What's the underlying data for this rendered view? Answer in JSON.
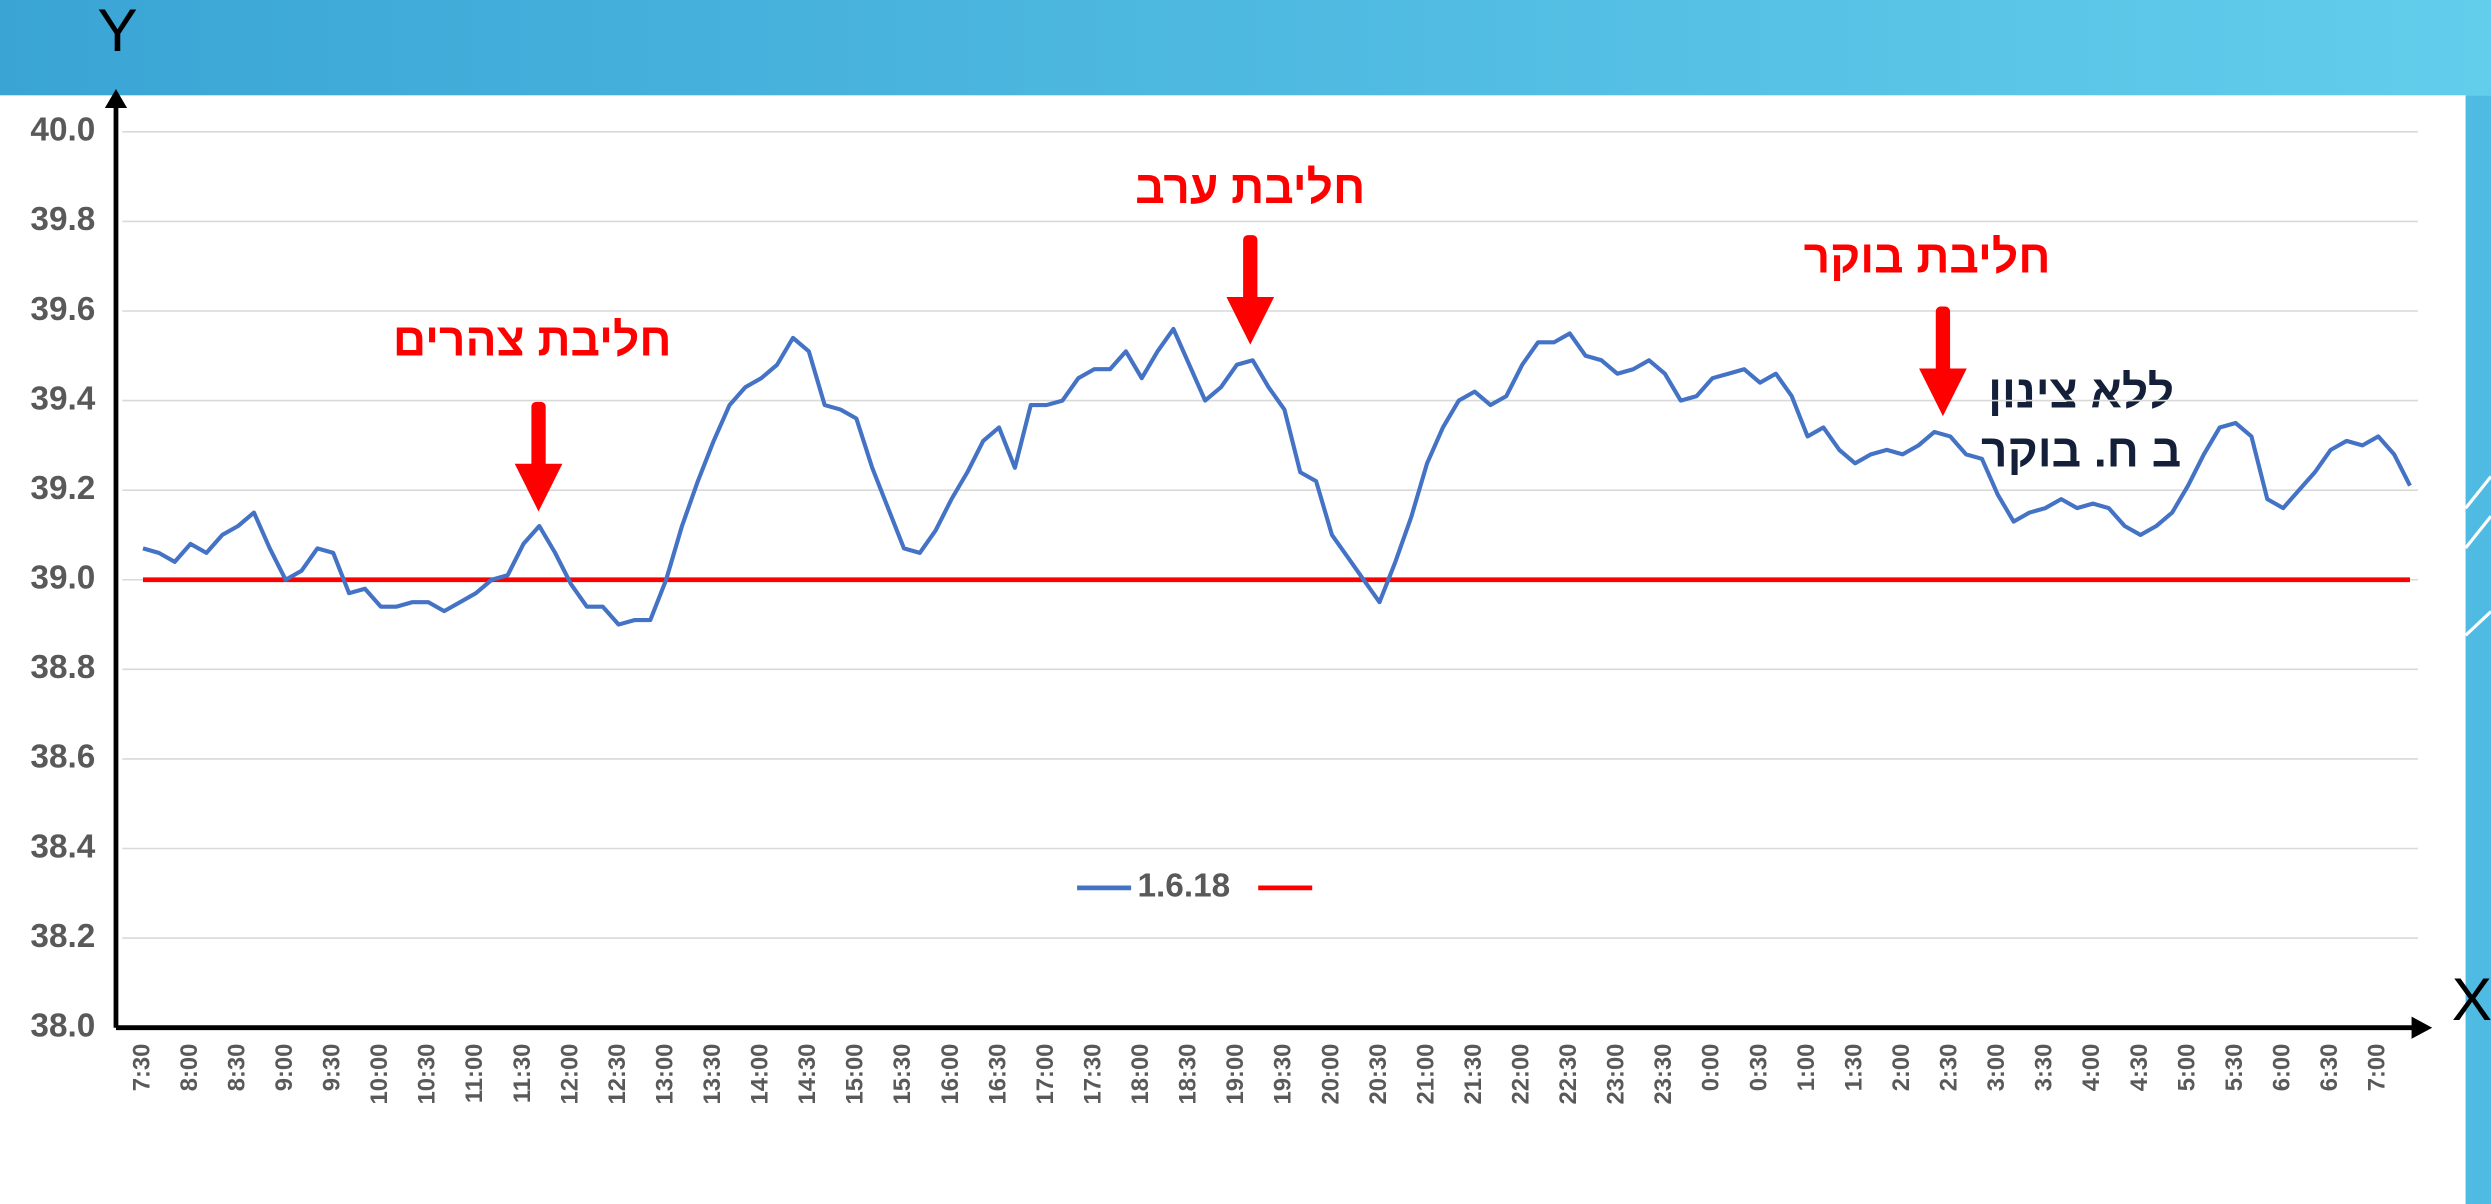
{
  "chart_data": {
    "type": "line",
    "xlabel": "X",
    "ylabel": "Y",
    "categories": [
      "7:30",
      null,
      null,
      "8:00",
      null,
      null,
      "8:30",
      null,
      null,
      "9:00",
      null,
      null,
      "9:30",
      null,
      null,
      "10:00",
      null,
      null,
      "10:30",
      null,
      null,
      "11:00",
      null,
      null,
      "11:30",
      null,
      null,
      "12:00",
      null,
      null,
      "12:30",
      null,
      null,
      "13:00",
      null,
      null,
      "13:30",
      null,
      null,
      "14:00",
      null,
      null,
      "14:30",
      null,
      null,
      "15:00",
      null,
      null,
      "15:30",
      null,
      null,
      "16:00",
      null,
      null,
      "16:30",
      null,
      null,
      "17:00",
      null,
      null,
      "17:30",
      null,
      null,
      "18:00",
      null,
      null,
      "18:30",
      null,
      null,
      "19:00",
      null,
      null,
      "19:30",
      null,
      null,
      "20:00",
      null,
      null,
      "20:30",
      null,
      null,
      "21:00",
      null,
      null,
      "21:30",
      null,
      null,
      "22:00",
      null,
      null,
      "22:30",
      null,
      null,
      "23:00",
      null,
      null,
      "23:30",
      null,
      null,
      "0:00",
      null,
      null,
      "0:30",
      null,
      null,
      "1:00",
      null,
      null,
      "1:30",
      null,
      null,
      "2:00",
      null,
      null,
      "2:30",
      null,
      null,
      "3:00",
      null,
      null,
      "3:30",
      null,
      null,
      "4:00",
      null,
      null,
      "4:30",
      null,
      null,
      "5:00",
      null,
      null,
      "5:30",
      null,
      null,
      "6:00",
      null,
      null,
      "6:30",
      null,
      null,
      "7:00",
      null,
      null
    ],
    "series": [
      {
        "name": "1.6.18",
        "color": "#4472c4",
        "values": [
          39.07,
          39.06,
          39.04,
          39.08,
          39.06,
          39.1,
          39.12,
          39.15,
          39.07,
          39.0,
          39.02,
          39.07,
          39.06,
          38.97,
          38.98,
          38.94,
          38.94,
          38.95,
          38.95,
          38.93,
          38.95,
          38.97,
          39.0,
          39.01,
          39.08,
          39.12,
          39.06,
          38.99,
          38.94,
          38.94,
          38.9,
          38.91,
          38.91,
          39.0,
          39.12,
          39.22,
          39.31,
          39.39,
          39.43,
          39.45,
          39.48,
          39.54,
          39.51,
          39.39,
          39.38,
          39.36,
          39.25,
          39.16,
          39.07,
          39.06,
          39.11,
          39.18,
          39.24,
          39.31,
          39.34,
          39.25,
          39.39,
          39.39,
          39.4,
          39.45,
          39.47,
          39.47,
          39.51,
          39.45,
          39.51,
          39.56,
          39.48,
          39.4,
          39.43,
          39.48,
          39.49,
          39.43,
          39.38,
          39.24,
          39.22,
          39.1,
          39.05,
          39.0,
          38.95,
          39.04,
          39.14,
          39.26,
          39.34,
          39.4,
          39.42,
          39.39,
          39.41,
          39.48,
          39.53,
          39.53,
          39.55,
          39.5,
          39.49,
          39.46,
          39.47,
          39.49,
          39.46,
          39.4,
          39.41,
          39.45,
          39.46,
          39.47,
          39.44,
          39.46,
          39.41,
          39.32,
          39.34,
          39.29,
          39.26,
          39.28,
          39.29,
          39.28,
          39.3,
          39.33,
          39.32,
          39.28,
          39.27,
          39.19,
          39.13,
          39.15,
          39.16,
          39.18,
          39.16,
          39.17,
          39.16,
          39.12,
          39.1,
          39.12,
          39.15,
          39.21,
          39.28,
          39.34,
          39.35,
          39.32,
          39.18,
          39.16,
          39.2,
          39.24,
          39.29,
          39.31,
          39.3,
          39.32,
          39.28,
          39.21
        ]
      }
    ],
    "reference_line": {
      "value": 39,
      "color": "#ff0000"
    },
    "ylim": [
      38,
      40
    ],
    "yticks": [
      {
        "value": 38,
        "label": "38.0"
      },
      {
        "value": 38.2,
        "label": "38.2"
      },
      {
        "value": 38.4,
        "label": "38.4"
      },
      {
        "value": 38.6,
        "label": "38.6"
      },
      {
        "value": 38.8,
        "label": "38.8"
      },
      {
        "value": 39,
        "label": "39.0"
      },
      {
        "value": 39.2,
        "label": "39.2"
      },
      {
        "value": 39.4,
        "label": "39.4"
      },
      {
        "value": 39.6,
        "label": "39.6"
      },
      {
        "value": 39.8,
        "label": "39.8"
      },
      {
        "value": 40,
        "label": "40.0"
      }
    ],
    "grid": true,
    "legend": "bottom",
    "annotations": [
      {
        "text": "חליבת צהרים",
        "color": "#ff0000"
      },
      {
        "text": "חליבת ערב",
        "color": "#ff0000"
      },
      {
        "text": "חליבת בוקר",
        "color": "#ff0000"
      }
    ],
    "notes": [
      "ללא צינון",
      "ב ח. בוקר"
    ]
  }
}
